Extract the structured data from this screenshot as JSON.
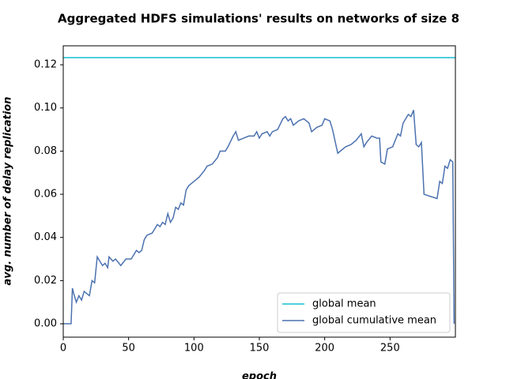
{
  "chart_data": {
    "type": "line",
    "title": "Aggregated HDFS simulations' results on networks of size 8",
    "x_label": "epoch",
    "y_label": "avg. number of delay replication",
    "xlim": [
      0,
      300
    ],
    "ylim": [
      -0.0062,
      0.1288
    ],
    "xticks": [
      0,
      50,
      100,
      150,
      200,
      250
    ],
    "yticks": [
      {
        "value": 0,
        "label": "0.00"
      },
      {
        "value": 0.02,
        "label": "0.02"
      },
      {
        "value": 0.04,
        "label": "0.04"
      },
      {
        "value": 0.06,
        "label": "0.06"
      },
      {
        "value": 0.08,
        "label": "0.08"
      },
      {
        "value": 0.1,
        "label": "0.10"
      },
      {
        "value": 0.12,
        "label": "0.12"
      }
    ],
    "legend": "lower right",
    "hlines": [
      {
        "name": "global mean",
        "color": "#17becf",
        "value": 0.1233
      }
    ],
    "x": [
      0,
      6,
      7,
      8,
      10,
      12,
      14,
      16,
      18,
      20,
      22,
      24,
      26,
      28,
      30,
      32,
      34,
      35,
      38,
      40,
      44,
      48,
      52,
      56,
      58,
      60,
      62,
      64,
      68,
      72,
      74,
      76,
      78,
      80,
      82,
      84,
      86,
      88,
      90,
      92,
      94,
      96,
      100,
      104,
      108,
      110,
      114,
      118,
      120,
      124,
      126,
      130,
      132,
      134,
      138,
      142,
      146,
      148,
      150,
      152,
      156,
      158,
      160,
      164,
      168,
      170,
      172,
      174,
      176,
      180,
      184,
      188,
      190,
      194,
      198,
      200,
      204,
      206,
      210,
      212,
      216,
      220,
      224,
      228,
      230,
      232,
      236,
      240,
      242,
      243,
      246,
      248,
      252,
      256,
      258,
      260,
      264,
      266,
      268,
      270,
      272,
      274,
      276,
      286,
      288,
      290,
      292,
      294,
      296,
      298,
      299
    ],
    "series": [
      {
        "name": "global cumulative mean",
        "color": "#4c72b0",
        "values": [
          0,
          0,
          0.0165,
          0.014,
          0.01,
          0.013,
          0.011,
          0.015,
          0.014,
          0.013,
          0.02,
          0.019,
          0.031,
          0.029,
          0.027,
          0.028,
          0.026,
          0.031,
          0.029,
          0.03,
          0.027,
          0.03,
          0.03,
          0.034,
          0.033,
          0.034,
          0.039,
          0.041,
          0.042,
          0.046,
          0.045,
          0.047,
          0.046,
          0.051,
          0.047,
          0.049,
          0.054,
          0.053,
          0.056,
          0.055,
          0.062,
          0.064,
          0.066,
          0.068,
          0.071,
          0.073,
          0.074,
          0.077,
          0.08,
          0.08,
          0.082,
          0.087,
          0.089,
          0.085,
          0.086,
          0.087,
          0.087,
          0.089,
          0.086,
          0.088,
          0.089,
          0.087,
          0.089,
          0.09,
          0.095,
          0.096,
          0.094,
          0.095,
          0.092,
          0.094,
          0.095,
          0.093,
          0.089,
          0.091,
          0.092,
          0.095,
          0.094,
          0.09,
          0.079,
          0.08,
          0.082,
          0.083,
          0.085,
          0.088,
          0.082,
          0.084,
          0.087,
          0.086,
          0.086,
          0.075,
          0.074,
          0.081,
          0.082,
          0.088,
          0.087,
          0.093,
          0.097,
          0.096,
          0.099,
          0.083,
          0.082,
          0.084,
          0.06,
          0.058,
          0.066,
          0.065,
          0.073,
          0.072,
          0.076,
          0.075,
          0
        ]
      }
    ]
  }
}
